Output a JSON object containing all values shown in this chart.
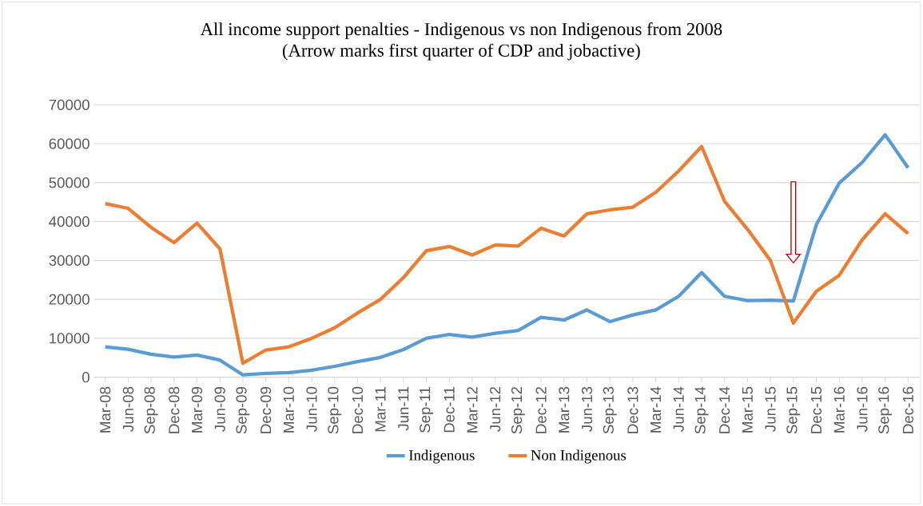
{
  "chart_data": {
    "type": "line",
    "title": "All income support penalties - Indigenous vs non Indigenous from 2008",
    "subtitle": "(Arrow marks first quarter of CDP and jobactive)",
    "categories": [
      "Mar-08",
      "Jun-08",
      "Sep-08",
      "Dec-08",
      "Mar-09",
      "Jun-09",
      "Sep-09",
      "Dec-09",
      "Mar-10",
      "Jun-10",
      "Sep-10",
      "Dec-10",
      "Mar-11",
      "Jun-11",
      "Sep-11",
      "Dec-11",
      "Mar-12",
      "Jun-12",
      "Sep-12",
      "Dec-12",
      "Mar-13",
      "Jun-13",
      "Sep-13",
      "Dec-13",
      "Mar-14",
      "Jun-14",
      "Sep-14",
      "Dec-14",
      "Mar-15",
      "Jun-15",
      "Sep-15",
      "Dec-15",
      "Mar-16",
      "Jun-16",
      "Sep-16",
      "Dec-16"
    ],
    "series": [
      {
        "name": "Indigenous",
        "color": "#5b9bd5",
        "values": [
          7800,
          7200,
          5900,
          5200,
          5700,
          4400,
          600,
          1000,
          1200,
          1800,
          2800,
          4000,
          5100,
          7100,
          10000,
          11000,
          10300,
          11300,
          12000,
          15400,
          14700,
          17300,
          14300,
          16000,
          17300,
          20800,
          26900,
          20800,
          19700,
          19800,
          19600,
          39200,
          49900,
          55200,
          62300,
          53800
        ]
      },
      {
        "name": "Non Indigenous",
        "color": "#ed7d31",
        "values": [
          44600,
          43400,
          38500,
          34600,
          39600,
          33000,
          3600,
          7000,
          7800,
          10000,
          12700,
          16500,
          20000,
          25600,
          32500,
          33600,
          31400,
          34000,
          33700,
          38300,
          36300,
          42000,
          43000,
          43700,
          47500,
          53000,
          59300,
          45200,
          38000,
          30000,
          13900,
          22100,
          26200,
          35300,
          42000,
          36900
        ]
      }
    ],
    "ylim": [
      0,
      70000
    ],
    "yticks": [
      0,
      10000,
      20000,
      30000,
      40000,
      50000,
      60000,
      70000
    ],
    "grid": "y",
    "legend": "bottom",
    "marker": "none",
    "line_style": "solid"
  }
}
